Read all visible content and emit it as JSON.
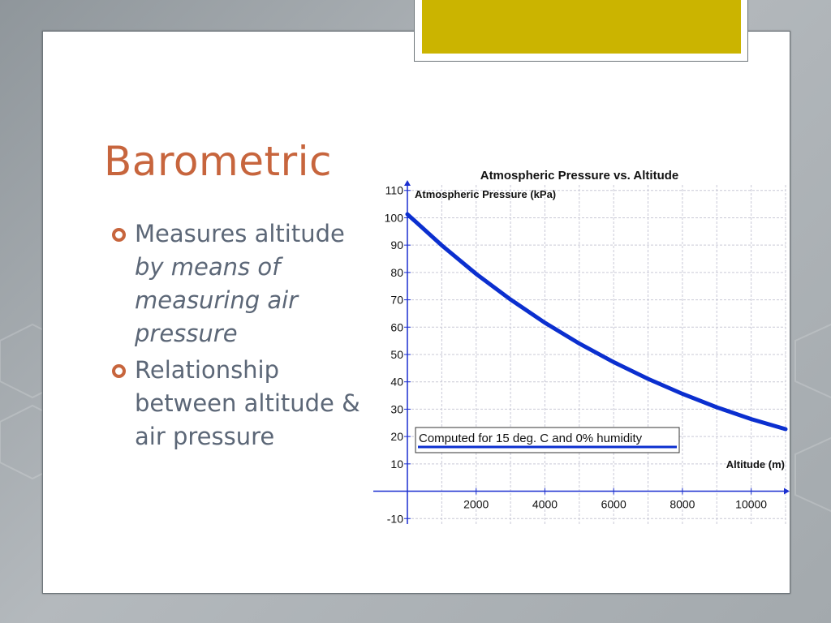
{
  "slide": {
    "title": "Barometric",
    "bullets": [
      {
        "plain": "Measures altitude",
        "italic": "by means of measuring air pressure"
      },
      {
        "plain": "Relationship between altitude & air pressure",
        "italic": ""
      }
    ]
  },
  "colors": {
    "title": "#c7653d",
    "accent": "#cbb400",
    "body_text": "#5c6777",
    "curve": "#0b2fcf",
    "axis": "#1b2fd0"
  },
  "chart_data": {
    "type": "line",
    "title": "Atmospheric Pressure vs. Altitude",
    "xlabel": "Altitude (m)",
    "ylabel": "Atmospheric Pressure (kPa)",
    "xlim": [
      0,
      11000
    ],
    "ylim": [
      -12,
      112
    ],
    "x_ticks": [
      2000,
      4000,
      6000,
      8000,
      10000
    ],
    "y_ticks": [
      -10,
      10,
      20,
      30,
      40,
      50,
      60,
      70,
      80,
      90,
      100,
      110
    ],
    "grid": true,
    "legend_position": "bottom-left",
    "series": [
      {
        "name": "Computed for 15 deg. C and 0% humidity",
        "x": [
          0,
          1000,
          2000,
          3000,
          4000,
          5000,
          6000,
          7000,
          8000,
          9000,
          10000,
          11000
        ],
        "y": [
          101.3,
          89.9,
          79.5,
          70.1,
          61.6,
          54.0,
          47.2,
          41.1,
          35.6,
          30.7,
          26.4,
          22.7
        ]
      }
    ]
  }
}
